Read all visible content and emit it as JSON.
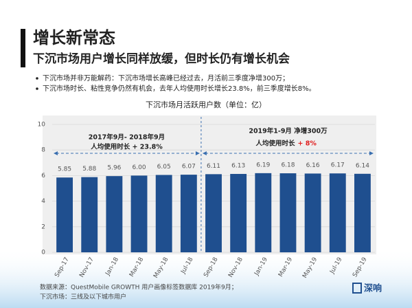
{
  "header": {
    "title": "增长新常态",
    "subtitle": "下沉市场用户增长同样放缓，但时长仍有增长机会"
  },
  "bullets": [
    "下沉市场并非万能解药：下沉市场增长高峰已经过去，月活前三季度净增300万；",
    "下沉市场时长、粘性竞争仍然有机会，去年人均使用时长增长23.8%，前三季度增长8%。"
  ],
  "chart_data": {
    "type": "bar",
    "title": "下沉市场月活跃用户数（单位：亿）",
    "categories": [
      "Sep-17",
      "Nov-17",
      "Jan-18",
      "Mar-18",
      "May-18",
      "Jul-18",
      "Sep-18",
      "Nov-18",
      "Jan-19",
      "Mar-19",
      "May-19",
      "Jul-19",
      "Sep-19"
    ],
    "values": [
      5.85,
      5.88,
      5.96,
      6.0,
      6.05,
      6.07,
      6.11,
      6.13,
      6.19,
      6.18,
      6.16,
      6.17,
      6.14
    ],
    "value_labels": [
      "5.85",
      "5.88",
      "5.96",
      "6.00",
      "6.05",
      "6.07",
      "6.11",
      "6.13",
      "6.19",
      "6.18",
      "6.16",
      "6.17",
      "6.14"
    ],
    "color": "#1f4f8f",
    "ylim": [
      0,
      10
    ],
    "yticks": [
      0,
      2,
      4,
      6,
      8,
      10
    ],
    "grid": true,
    "annotations": [
      "2017年9月- 2018年9月",
      "人均使用时长 + 23.8%",
      "2019年1-9月 净增300万",
      "人均使用时长",
      "+ 8%"
    ]
  },
  "footer": [
    "数据来源：QuestMobile GROWTH 用户画像标签数据库 2019年9月；",
    "下沉市场：三线及以下城市用户"
  ],
  "logo": "深响"
}
